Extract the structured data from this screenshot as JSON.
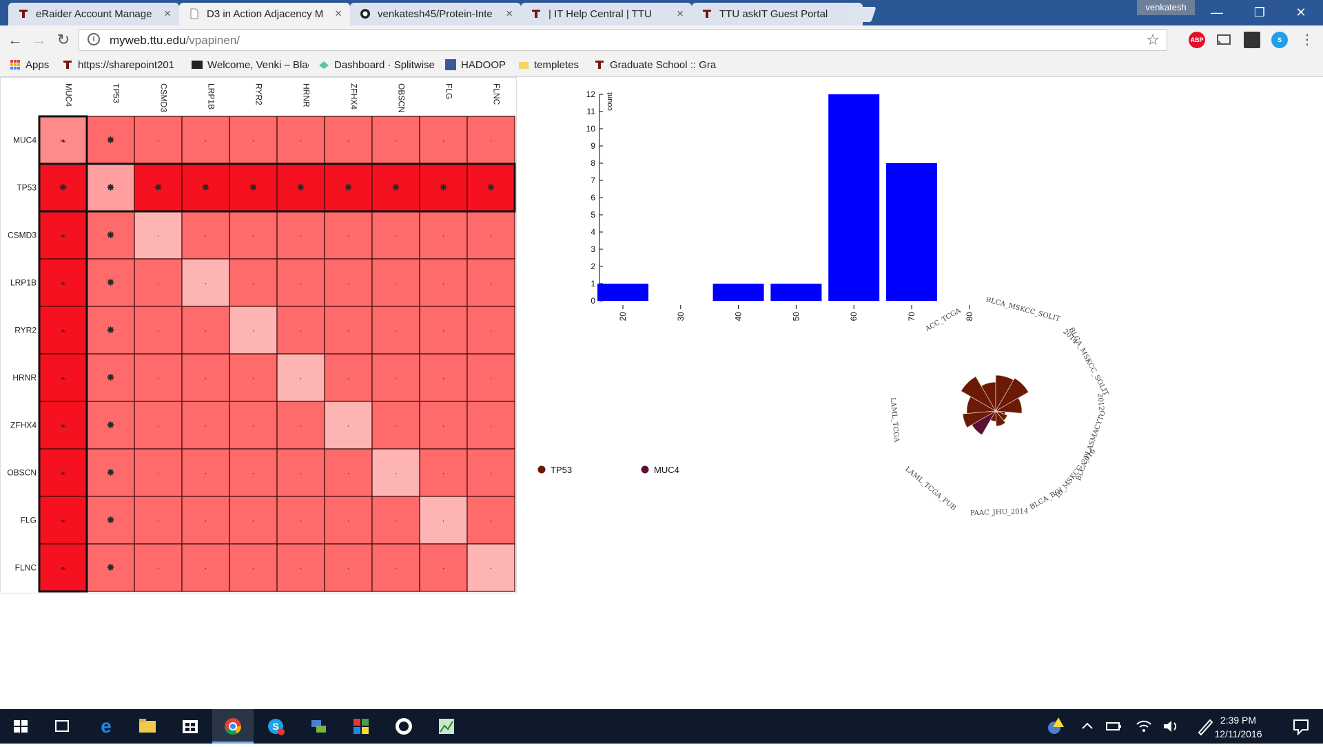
{
  "browser": {
    "tabs": [
      {
        "title": "eRaider Account Manage",
        "active": false,
        "icon": "ttu-icon"
      },
      {
        "title": "D3 in Action Adjacency M",
        "active": true,
        "icon": "page-icon"
      },
      {
        "title": "venkatesh45/Protein-Inte",
        "active": false,
        "icon": "github-icon"
      },
      {
        "title": "| IT Help Central | TTU",
        "active": false,
        "icon": "ttu-icon"
      },
      {
        "title": "TTU askIT Guest Portal",
        "active": false,
        "icon": "ttu-icon"
      }
    ],
    "profile_name": "venkatesh",
    "url_host": "myweb.ttu.edu",
    "url_path": "/vpapinen/",
    "extensions": {
      "abp": "ABP"
    },
    "bookmarks": [
      {
        "label": "Apps",
        "icon": "apps-grid-icon"
      },
      {
        "label": "https://sharepoint201",
        "icon": "ttu-icon"
      },
      {
        "label": "Welcome, Venki – Blac",
        "icon": "blackboard-icon"
      },
      {
        "label": "Dashboard · Splitwise",
        "icon": "splitwise-icon"
      },
      {
        "label": "HADOOP",
        "icon": "facebook-icon"
      },
      {
        "label": "templetes",
        "icon": "folder-icon"
      },
      {
        "label": "Graduate School :: Gra",
        "icon": "ttu-icon"
      }
    ]
  },
  "adjacency_matrix": {
    "genes": [
      "MUC4",
      "TP53",
      "CSMD3",
      "LRP1B",
      "RYR2",
      "HRNR",
      "ZFHX4",
      "OBSCN",
      "FLG",
      "FLNC"
    ],
    "highlighted_row": "TP53",
    "highlighted_column": "MUC4",
    "colors": {
      "strong": "#f5111f",
      "medium": "#ff6a6a",
      "self": "#ffb4b4",
      "mucself": "#ff8a8a",
      "tp53self": "#ff9f9f"
    }
  },
  "chart_data": {
    "type": "bar",
    "categories": [
      20,
      30,
      40,
      50,
      60,
      70,
      80
    ],
    "bars": [
      {
        "x": 20,
        "value": 1
      },
      {
        "x": 40,
        "value": 1
      },
      {
        "x": 50,
        "value": 1
      },
      {
        "x": 60,
        "value": 12
      },
      {
        "x": 70,
        "value": 8
      }
    ],
    "yticks": [
      0,
      1,
      2,
      3,
      4,
      5,
      6,
      7,
      8,
      9,
      10,
      11,
      12
    ],
    "ylim": [
      0,
      12
    ],
    "ylabel": "count",
    "xlabel": "",
    "bar_color": "#0000ff",
    "grid": false
  },
  "radial_chart": {
    "labels": [
      "BLCA_MSKCC_SOLIT",
      "2014",
      "BLCA_MSKCC_SOLIT",
      "2012",
      "BLCA_PLASMACYTO",
      "ID_MSKCC_2016",
      "BLCA_BGI",
      "PAAC_JHU_2014",
      "LAML_TCGA_PUB",
      "LAML_TCGA",
      "ACC_TCGA"
    ],
    "fill_color": "#6b1a05"
  },
  "legend": [
    {
      "label": "TP53",
      "color": "#6b1a05"
    },
    {
      "label": "MUC4",
      "color": "#5a1034"
    }
  ],
  "taskbar": {
    "time": "2:39 PM",
    "date": "12/11/2016"
  }
}
